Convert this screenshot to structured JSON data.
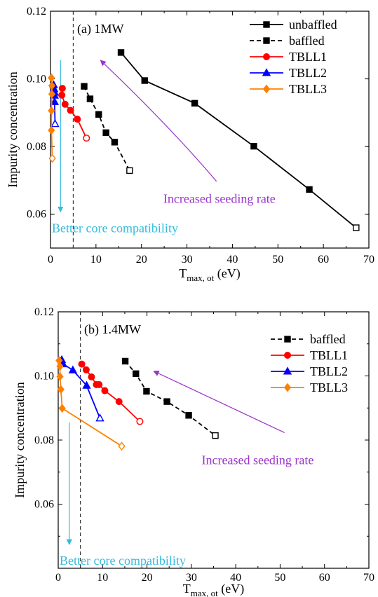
{
  "chart_data": [
    {
      "type": "line",
      "title": "(a) 1MW",
      "xlabel": "T",
      "xlabel_sub": "max, ot",
      "xlabel_unit": " (eV)",
      "ylabel": "Impurity concentration",
      "xlim": [
        0,
        70
      ],
      "ylim": [
        0.05,
        0.12
      ],
      "xticks": [
        0,
        10,
        20,
        30,
        40,
        50,
        60,
        70
      ],
      "yticks": [
        0.06,
        0.08,
        0.1,
        0.12
      ],
      "ytick_labels": [
        "0.06",
        "0.08",
        "0.10",
        "0.12"
      ],
      "grid": false,
      "legend_position": "top-right",
      "series": [
        {
          "name": "unbaffled",
          "marker": "square",
          "dash": false,
          "color": "#000000",
          "x": [
            15.5,
            20.7,
            31.7,
            44.7,
            56.9,
            67.2
          ],
          "y": [
            0.1078,
            0.0995,
            0.0928,
            0.0801,
            0.0673,
            0.056
          ]
        },
        {
          "name": "baffled",
          "marker": "square",
          "dash": true,
          "color": "#000000",
          "x": [
            7.4,
            8.7,
            10.6,
            12.2,
            14.1,
            17.4
          ],
          "y": [
            0.0978,
            0.0941,
            0.0895,
            0.0841,
            0.0813,
            0.0729
          ]
        },
        {
          "name": "TBLL1",
          "marker": "circle",
          "dash": false,
          "color": "#ff0000",
          "x": [
            2.6,
            2.5,
            3.2,
            4.4,
            5.9,
            7.9
          ],
          "y": [
            0.0972,
            0.0952,
            0.0925,
            0.0907,
            0.0881,
            0.0825
          ]
        },
        {
          "name": "TBLL2",
          "marker": "triangle",
          "dash": false,
          "color": "#0000ff",
          "x": [
            0.7,
            0.8,
            0.9,
            0.9,
            0.9,
            1.0
          ],
          "y": [
            0.0982,
            0.097,
            0.096,
            0.0951,
            0.0932,
            0.0867
          ]
        },
        {
          "name": "TBLL3",
          "marker": "diamond",
          "dash": false,
          "color": "#ff8000",
          "x": [
            0.2,
            0.3,
            0.3,
            0.2,
            0.2,
            0.4
          ],
          "y": [
            0.1003,
            0.098,
            0.0955,
            0.0906,
            0.0848,
            0.0765
          ]
        }
      ],
      "threshold_x": 5,
      "annotations": [
        {
          "text": "Increased seeding rate",
          "color": "#9a33cc",
          "arrow_from": [
            36.5,
            0.0697
          ],
          "arrow_to": [
            11,
            0.1055
          ],
          "text_at": [
            24.5,
            0.0644
          ]
        },
        {
          "text": "Better core compatibility",
          "color": "#33bbdd",
          "arrow_from": [
            2.2,
            0.1055
          ],
          "arrow_to": [
            2.2,
            0.0607
          ],
          "text_at": [
            0,
            0.0557
          ]
        }
      ]
    },
    {
      "type": "line",
      "title": "(b) 1.4MW",
      "xlabel": "T",
      "xlabel_sub": "max, ot",
      "xlabel_unit": " (eV)",
      "ylabel": "Impurity concentration",
      "xlim": [
        0,
        70
      ],
      "ylim": [
        0.04,
        0.12
      ],
      "xticks": [
        0,
        10,
        20,
        30,
        40,
        50,
        60,
        70
      ],
      "yticks": [
        0.06,
        0.08,
        0.1,
        0.12
      ],
      "ytick_labels": [
        "0.06",
        "0.08",
        "0.10",
        "0.12"
      ],
      "grid": false,
      "legend_position": "top-right",
      "series": [
        {
          "name": "baffled",
          "marker": "square",
          "dash": true,
          "color": "#000000",
          "x": [
            15.1,
            17.5,
            19.9,
            24.5,
            29.4,
            35.4
          ],
          "y": [
            0.1046,
            0.1007,
            0.0952,
            0.092,
            0.0877,
            0.0814
          ]
        },
        {
          "name": "TBLL1",
          "marker": "circle",
          "dash": false,
          "color": "#ff0000",
          "x": [
            5.3,
            6.3,
            7.5,
            8.6,
            9.2,
            10.5,
            13.7,
            18.4
          ],
          "y": [
            0.1037,
            0.1019,
            0.0997,
            0.0973,
            0.0973,
            0.0954,
            0.092,
            0.0858
          ]
        },
        {
          "name": "TBLL2",
          "marker": "triangle",
          "dash": false,
          "color": "#0000ff",
          "x": [
            0.8,
            1.1,
            3.3,
            6.4,
            9.4
          ],
          "y": [
            0.105,
            0.1037,
            0.1018,
            0.097,
            0.0868
          ]
        },
        {
          "name": "TBLL3",
          "marker": "diamond",
          "dash": false,
          "color": "#ff8000",
          "x": [
            0.2,
            0.4,
            0.4,
            0.6,
            0.9,
            14.3
          ],
          "y": [
            0.1048,
            0.103,
            0.0998,
            0.0958,
            0.0899,
            0.0781
          ]
        }
      ],
      "threshold_x": 5,
      "annotations": [
        {
          "text": "Increased seeding rate",
          "color": "#9a33cc",
          "arrow_from": [
            51,
            0.0823
          ],
          "arrow_to": [
            21.5,
            0.1015
          ],
          "text_at": [
            32,
            0.0735
          ]
        },
        {
          "text": "Better core compatibility",
          "color": "#33bbdd",
          "arrow_from": [
            2.5,
            0.0855
          ],
          "arrow_to": [
            2.5,
            0.0474
          ],
          "text_at": [
            0,
            0.0422
          ]
        }
      ]
    }
  ]
}
